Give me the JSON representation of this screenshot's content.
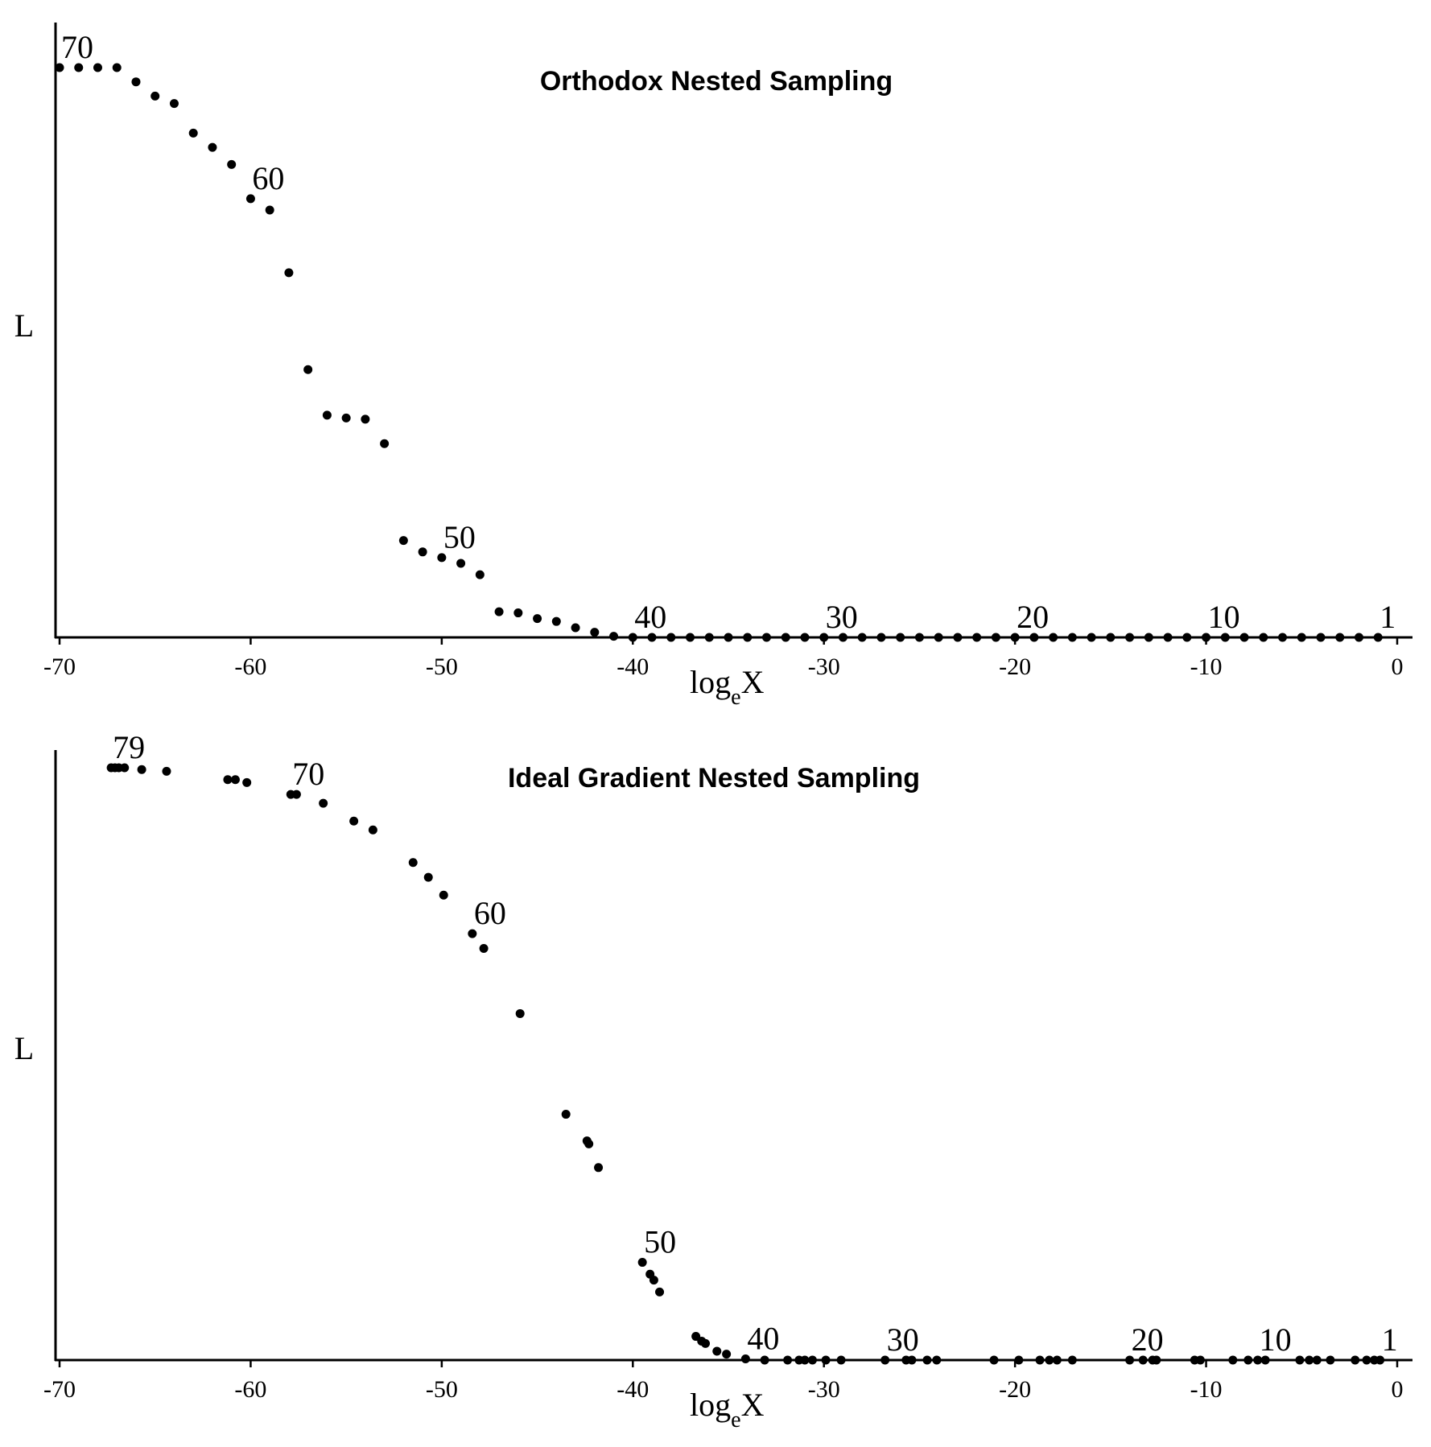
{
  "chart_data": [
    {
      "type": "scatter",
      "title": "Orthodox Nested Sampling",
      "xlabel": "log",
      "xlabel_sub": "e",
      "xlabel_suffix": "X",
      "ylabel": "L",
      "xlim": [
        -70,
        0
      ],
      "xticks": [
        -70,
        -60,
        -50,
        -40,
        -30,
        -20,
        -10,
        0
      ],
      "xtick_labels": [
        "-70",
        "-60",
        "-50",
        "-40",
        "-30",
        "-20",
        "-10",
        "0"
      ],
      "grid": false,
      "x": [
        -70,
        -69,
        -68,
        -67,
        -66,
        -65,
        -64,
        -63,
        -62,
        -61,
        -60,
        -59,
        -58,
        -57,
        -56,
        -55,
        -54,
        -53,
        -52,
        -51,
        -50,
        -49,
        -48,
        -47,
        -46,
        -45,
        -44,
        -43,
        -42,
        -41,
        -40,
        -39,
        -38,
        -37,
        -36,
        -35,
        -34,
        -33,
        -32,
        -31,
        -30,
        -29,
        -28,
        -27,
        -26,
        -25,
        -24,
        -23,
        -22,
        -21,
        -20,
        -19,
        -18,
        -17,
        -16,
        -15,
        -14,
        -13,
        -12,
        -11,
        -10,
        -9,
        -8,
        -7,
        -6,
        -5,
        -4,
        -3,
        -2,
        -1
      ],
      "y": [
        1.0,
        1.0,
        1.0,
        1.0,
        0.975,
        0.95,
        0.937,
        0.885,
        0.86,
        0.83,
        0.77,
        0.75,
        0.64,
        0.47,
        0.39,
        0.385,
        0.383,
        0.34,
        0.17,
        0.15,
        0.14,
        0.13,
        0.11,
        0.045,
        0.043,
        0.033,
        0.028,
        0.017,
        0.009,
        0.002,
        0,
        0,
        0,
        0,
        0,
        0,
        0,
        0,
        0,
        0,
        0,
        0,
        0,
        0,
        0,
        0,
        0,
        0,
        0,
        0,
        0,
        0,
        0,
        0,
        0,
        0,
        0,
        0,
        0,
        0,
        0,
        0,
        0,
        0,
        0,
        0,
        0,
        0,
        0,
        0
      ],
      "point_labels": [
        {
          "text": "70",
          "x": -70
        },
        {
          "text": "60",
          "x": -60
        },
        {
          "text": "50",
          "x": -50
        },
        {
          "text": "40",
          "x": -40
        },
        {
          "text": "30",
          "x": -30
        },
        {
          "text": "20",
          "x": -20
        },
        {
          "text": "10",
          "x": -10
        },
        {
          "text": "1",
          "x": -1
        }
      ]
    },
    {
      "type": "scatter",
      "title": "Ideal Gradient Nested Sampling",
      "xlabel": "log",
      "xlabel_sub": "e",
      "xlabel_suffix": "X",
      "ylabel": "L",
      "xlim": [
        -70,
        0
      ],
      "xticks": [
        -70,
        -60,
        -50,
        -40,
        -30,
        -20,
        -10,
        0
      ],
      "xtick_labels": [
        "-70",
        "-60",
        "-50",
        "-40",
        "-30",
        "-20",
        "-10",
        "0"
      ],
      "grid": false,
      "x": [
        -67.3,
        -67.1,
        -66.9,
        -66.6,
        -65.7,
        -64.4,
        -61.2,
        -60.8,
        -60.2,
        -57.9,
        -57.6,
        -56.2,
        -54.6,
        -53.6,
        -51.5,
        -50.7,
        -49.9,
        -48.4,
        -47.8,
        -45.9,
        -43.5,
        -42.4,
        -42.3,
        -41.8,
        -39.5,
        -39.1,
        -38.9,
        -38.6,
        -36.7,
        -36.4,
        -36.2,
        -35.6,
        -35.1,
        -34.1,
        -33.1,
        -31.9,
        -31.3,
        -31.0,
        -30.6,
        -29.9,
        -29.1,
        -26.8,
        -25.7,
        -25.4,
        -24.6,
        -24.1,
        -21.1,
        -19.8,
        -18.7,
        -18.2,
        -17.8,
        -17.0,
        -14.0,
        -13.3,
        -12.8,
        -12.6,
        -10.6,
        -10.3,
        -8.6,
        -7.8,
        -7.3,
        -6.9,
        -5.1,
        -4.6,
        -4.2,
        -3.5,
        -2.2,
        -1.6,
        -1.2,
        -0.9
      ],
      "y": [
        1.0,
        1.0,
        1.0,
        1.0,
        0.997,
        0.994,
        0.98,
        0.98,
        0.975,
        0.955,
        0.955,
        0.94,
        0.91,
        0.895,
        0.84,
        0.815,
        0.785,
        0.72,
        0.695,
        0.585,
        0.415,
        0.37,
        0.365,
        0.325,
        0.165,
        0.145,
        0.135,
        0.115,
        0.04,
        0.032,
        0.028,
        0.015,
        0.01,
        0.002,
        0,
        0,
        0,
        0,
        0,
        0,
        0,
        0,
        0,
        0,
        0,
        0,
        0,
        0,
        0,
        0,
        0,
        0,
        0,
        0,
        0,
        0,
        0,
        0,
        0,
        0,
        0,
        0,
        0,
        0,
        0,
        0,
        0,
        0,
        0,
        0
      ],
      "point_labels": [
        {
          "text": "79",
          "x": -67.3
        },
        {
          "text": "70",
          "x": -57.9
        },
        {
          "text": "60",
          "x": -48.4
        },
        {
          "text": "50",
          "x": -39.5
        },
        {
          "text": "40",
          "x": -34.1
        },
        {
          "text": "30",
          "x": -26.8
        },
        {
          "text": "20",
          "x": -14.0
        },
        {
          "text": "10",
          "x": -7.3
        },
        {
          "text": "1",
          "x": -0.9
        }
      ]
    }
  ]
}
